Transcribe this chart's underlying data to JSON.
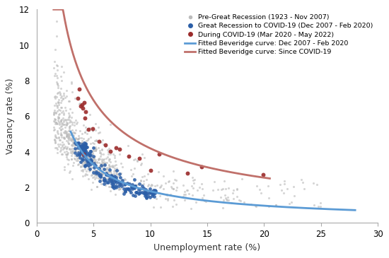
{
  "xlabel": "Unemployment rate (%)",
  "ylabel": "Vacancy rate (%)",
  "xlim": [
    0,
    30
  ],
  "ylim": [
    0,
    12
  ],
  "xticks": [
    0,
    5,
    10,
    15,
    20,
    25,
    30
  ],
  "yticks": [
    0,
    2,
    4,
    6,
    8,
    10,
    12
  ],
  "legend_labels": [
    "Pre-Great Recession (1923 - Nov 2007)",
    "Great Recession to COVID-19 (Dec 2007 - Feb 2020)",
    "During COVID-19 (Mar 2020 - May 2022)",
    "Fitted Beveridge curve: Dec 2007 - Feb 2020",
    "Fitted Beveridge curve: Since COVID-19"
  ],
  "legend_colors": [
    "#bbbbbb",
    "#2b5ea7",
    "#9b2b2b",
    "#5b9bd5",
    "#c0706a"
  ],
  "gray_color": "#bbbbbb",
  "blue_color": "#2b5ea7",
  "red_color": "#9b2b2b",
  "fit_blue_color": "#5b9bd5",
  "fit_red_color": "#c0706a",
  "blue_fit_A": 13.5,
  "blue_fit_alpha": 0.88,
  "red_fit_A": 22.0,
  "red_fit_alpha": 0.72,
  "gray_seed": 42,
  "blue_seed": 99,
  "red_seed": 7
}
